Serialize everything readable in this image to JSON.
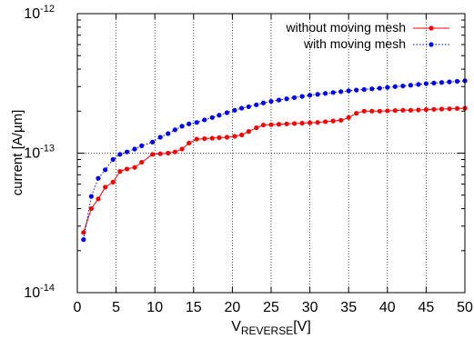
{
  "chart_data": {
    "type": "line",
    "title": "",
    "xlabel_main": "V",
    "xlabel_sub": "REVERSE",
    "xlabel_unit": "[V]",
    "ylabel": "current [A/µm]",
    "xlim": [
      0,
      50
    ],
    "ylim": [
      1e-14,
      1e-12
    ],
    "yscale": "log",
    "grid": "dotted, at major ticks",
    "legend_position": "top-right",
    "x_ticks": [
      0,
      5,
      10,
      15,
      20,
      25,
      30,
      35,
      40,
      45,
      50
    ],
    "x_tick_labels": [
      "0",
      "5",
      "10",
      "15",
      "20",
      "25",
      "30",
      "35",
      "40",
      "45",
      "50"
    ],
    "y_ticks": [
      {
        "value": 1e-14,
        "base": "10",
        "exp": "-14"
      },
      {
        "value": 1e-13,
        "base": "10",
        "exp": "-13"
      },
      {
        "value": 1e-12,
        "base": "10",
        "exp": "-12"
      }
    ],
    "series": [
      {
        "name": "without moving mesh",
        "color": "#ff0000",
        "line_style": "solid",
        "points": [
          [
            0.8,
            2.7e-14
          ],
          [
            1.8,
            4e-14
          ],
          [
            2.7,
            4.7e-14
          ],
          [
            3.6,
            5.7e-14
          ],
          [
            4.6,
            6.2e-14
          ],
          [
            5.5,
            7.4e-14
          ],
          [
            6.4,
            7.7e-14
          ],
          [
            7.4,
            7.9e-14
          ],
          [
            8.3,
            8.6e-14
          ],
          [
            9.7,
            9.8e-14
          ],
          [
            10.7,
            9.9e-14
          ],
          [
            11.7,
            1e-13
          ],
          [
            12.6,
            1.02e-13
          ],
          [
            13.5,
            1.07e-13
          ],
          [
            14.4,
            1.18e-13
          ],
          [
            15.4,
            1.26e-13
          ],
          [
            16.4,
            1.27e-13
          ],
          [
            17.4,
            1.28e-13
          ],
          [
            18.3,
            1.29e-13
          ],
          [
            19.3,
            1.3e-13
          ],
          [
            20.3,
            1.32e-13
          ],
          [
            21.2,
            1.35e-13
          ],
          [
            22.1,
            1.43e-13
          ],
          [
            23.1,
            1.52e-13
          ],
          [
            24.0,
            1.59e-13
          ],
          [
            25.0,
            1.6e-13
          ],
          [
            26.0,
            1.61e-13
          ],
          [
            27.0,
            1.62e-13
          ],
          [
            28.0,
            1.63e-13
          ],
          [
            29.0,
            1.64e-13
          ],
          [
            30.0,
            1.65e-13
          ],
          [
            31.0,
            1.66e-13
          ],
          [
            32.0,
            1.68e-13
          ],
          [
            33.0,
            1.7e-13
          ],
          [
            34.0,
            1.72e-13
          ],
          [
            35.0,
            1.8e-13
          ],
          [
            36.0,
            1.93e-13
          ],
          [
            37.0,
            2e-13
          ],
          [
            38.0,
            2e-13
          ],
          [
            39.0,
            2e-13
          ],
          [
            40.0,
            2.01e-13
          ],
          [
            41.0,
            2.02e-13
          ],
          [
            42.0,
            2.03e-13
          ],
          [
            43.0,
            2.03e-13
          ],
          [
            44.0,
            2.04e-13
          ],
          [
            45.0,
            2.05e-13
          ],
          [
            46.0,
            2.06e-13
          ],
          [
            47.0,
            2.07e-13
          ],
          [
            48.0,
            2.08e-13
          ],
          [
            49.0,
            2.09e-13
          ],
          [
            50.0,
            2.1e-13
          ]
        ]
      },
      {
        "name": "with moving mesh",
        "color": "#0000ff",
        "line_style": "dotted",
        "points": [
          [
            0.8,
            2.4e-14
          ],
          [
            1.8,
            4.9e-14
          ],
          [
            2.7,
            6.6e-14
          ],
          [
            3.6,
            7.6e-14
          ],
          [
            4.6,
            9e-14
          ],
          [
            5.5,
            9.8e-14
          ],
          [
            6.4,
            1.02e-13
          ],
          [
            7.4,
            1.07e-13
          ],
          [
            8.3,
            1.13e-13
          ],
          [
            9.7,
            1.2e-13
          ],
          [
            10.7,
            1.3e-13
          ],
          [
            11.7,
            1.38e-13
          ],
          [
            12.6,
            1.47e-13
          ],
          [
            13.5,
            1.56e-13
          ],
          [
            14.4,
            1.62e-13
          ],
          [
            15.4,
            1.66e-13
          ],
          [
            16.4,
            1.73e-13
          ],
          [
            17.4,
            1.8e-13
          ],
          [
            18.3,
            1.87e-13
          ],
          [
            19.3,
            1.95e-13
          ],
          [
            20.3,
            2.03e-13
          ],
          [
            21.2,
            2.1e-13
          ],
          [
            22.1,
            2.15e-13
          ],
          [
            23.1,
            2.22e-13
          ],
          [
            24.0,
            2.29e-13
          ],
          [
            25.0,
            2.35e-13
          ],
          [
            26.0,
            2.4e-13
          ],
          [
            27.0,
            2.45e-13
          ],
          [
            28.0,
            2.5e-13
          ],
          [
            29.0,
            2.55e-13
          ],
          [
            30.0,
            2.6e-13
          ],
          [
            31.0,
            2.64e-13
          ],
          [
            32.0,
            2.68e-13
          ],
          [
            33.0,
            2.72e-13
          ],
          [
            34.0,
            2.76e-13
          ],
          [
            35.0,
            2.8e-13
          ],
          [
            36.0,
            2.83e-13
          ],
          [
            37.0,
            2.86e-13
          ],
          [
            38.0,
            2.89e-13
          ],
          [
            39.0,
            2.92e-13
          ],
          [
            40.0,
            2.96e-13
          ],
          [
            41.0,
            3e-13
          ],
          [
            42.0,
            3.03e-13
          ],
          [
            43.0,
            3.07e-13
          ],
          [
            44.0,
            3.11e-13
          ],
          [
            45.0,
            3.15e-13
          ],
          [
            46.0,
            3.18e-13
          ],
          [
            47.0,
            3.21e-13
          ],
          [
            48.0,
            3.24e-13
          ],
          [
            49.0,
            3.27e-13
          ],
          [
            50.0,
            3.3e-13
          ]
        ]
      }
    ]
  }
}
